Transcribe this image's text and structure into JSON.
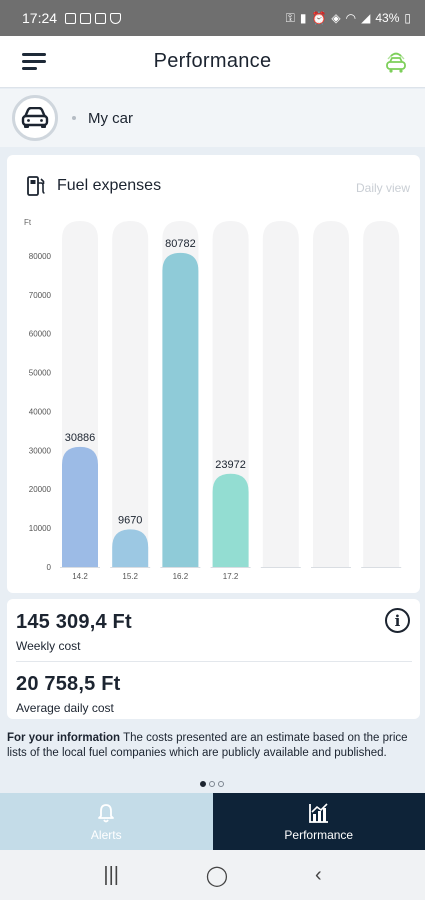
{
  "status_bar": {
    "time": "17:24",
    "battery": "43%"
  },
  "header": {
    "title": "Performance"
  },
  "car_selector": {
    "name": "My car"
  },
  "chart_card": {
    "title": "Fuel expenses",
    "view_label": "Daily view"
  },
  "chart_data": {
    "type": "bar",
    "ylabel": "Ft",
    "title": "",
    "xlabel": "",
    "ylim": [
      0,
      90000
    ],
    "yticks": [
      0,
      10000,
      20000,
      30000,
      40000,
      50000,
      60000,
      70000,
      80000
    ],
    "categories": [
      "14.2",
      "15.2",
      "16.2",
      "17.2",
      "",
      "",
      ""
    ],
    "values": [
      30886,
      9670,
      80782,
      23972,
      null,
      null,
      null
    ],
    "bar_colors": [
      "#9cbbe6",
      "#9cc8e3",
      "#8fcbd8",
      "#93ddd2"
    ],
    "grid": false
  },
  "costs": {
    "weekly_value": "145 309,4 Ft",
    "weekly_label": "Weekly cost",
    "daily_value": "20 758,5 Ft",
    "daily_label": "Average daily cost"
  },
  "note": {
    "bold": "For your information",
    "text": " The costs presented are an estimate based on the price lists of the local fuel companies which are publicly available and published."
  },
  "nav": {
    "alerts_label": "Alerts",
    "performance_label": "Performance"
  },
  "colors": {
    "accent_dark": "#0e2338",
    "accent_light": "#c4dce8",
    "brand_green": "#7dcf5a"
  }
}
